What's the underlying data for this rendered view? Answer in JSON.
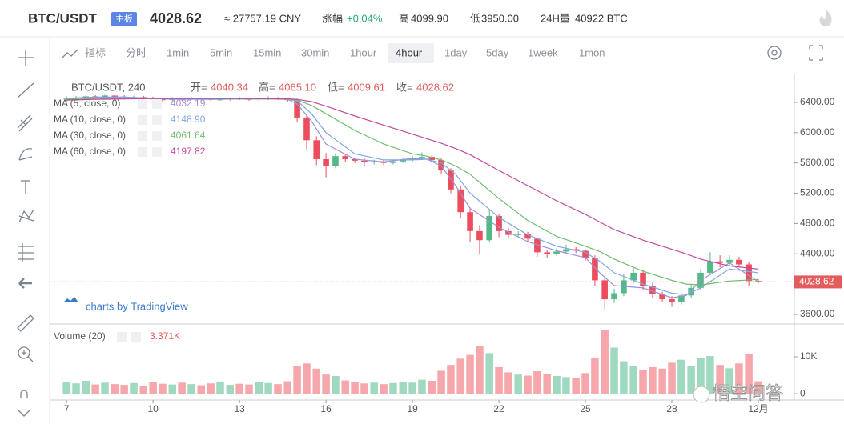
{
  "header": {
    "symbol": "BTC/USDT",
    "board": "主板",
    "cny": "≈ 27757.19 CNY",
    "change_label": "涨幅",
    "change": "+0.04%",
    "high_label": "高",
    "high": "4099.90",
    "low_label": "低",
    "low": "3950.00",
    "vol_label": "24H量",
    "vol": "40922 BTC"
  },
  "toolbar": {
    "indicator": "指标",
    "intervals": [
      "分时",
      "1min",
      "5min",
      "15min",
      "30min",
      "1hour",
      "4hour",
      "1day",
      "5day",
      "1week",
      "1mon"
    ],
    "selected": 6
  },
  "watermark": "悟空问答",
  "chart_data": {
    "type": "candlestick",
    "legend_title": "BTC/USDT, 240",
    "credit": "charts by TradingView",
    "ohlc_legend": [
      {
        "label": "开=",
        "value": "4040.34"
      },
      {
        "label": "高=",
        "value": "4065.10"
      },
      {
        "label": "低=",
        "value": "4009.61"
      },
      {
        "label": "收=",
        "value": "4028.62"
      }
    ],
    "up_color": "#53b987",
    "down_color": "#eb4d5c",
    "vol_up_color": "#9fd9c0",
    "vol_down_color": "#f5a7ab",
    "last_price_color": "#e25c5c",
    "grid": false,
    "xlim": [
      6.44,
      32.25
    ],
    "xticks": [
      7,
      10,
      13,
      16,
      19,
      22,
      25,
      28,
      {
        "value": 31,
        "label": "12月"
      }
    ],
    "ylim": [
      3473,
      6780
    ],
    "yticks": [
      {
        "value": 3600,
        "label": "3600.00"
      },
      {
        "value": 4000,
        "label": "4000.00"
      },
      {
        "value": 4400,
        "label": "4400.00"
      },
      {
        "value": 4800,
        "label": "4800.00"
      },
      {
        "value": 5200,
        "label": "5200.00"
      },
      {
        "value": 5600,
        "label": "5600.00"
      },
      {
        "value": 6000,
        "label": "6000.00"
      },
      {
        "value": 6400,
        "label": "6400.00"
      }
    ],
    "volume_ylim": [
      -1700,
      17800
    ],
    "volume_yticks": [
      0,
      {
        "value": 10000,
        "label": "10K"
      }
    ],
    "volume_legend": {
      "name": "Volume (20)",
      "label": "3.371K"
    },
    "x": [
      7,
      7.33,
      7.67,
      8,
      8.33,
      8.67,
      9,
      9.33,
      9.67,
      10,
      10.33,
      10.67,
      11,
      11.33,
      11.67,
      12,
      12.33,
      12.67,
      13,
      13.33,
      13.67,
      14,
      14.33,
      14.67,
      15,
      15.33,
      15.67,
      16,
      16.33,
      16.67,
      17,
      17.33,
      17.67,
      18,
      18.33,
      18.67,
      19,
      19.33,
      19.67,
      20,
      20.33,
      20.67,
      21,
      21.33,
      21.67,
      22,
      22.33,
      22.67,
      23,
      23.33,
      23.67,
      24,
      24.33,
      24.67,
      25,
      25.33,
      25.67,
      26,
      26.33,
      26.67,
      27,
      27.33,
      27.67,
      28,
      28.33,
      28.67,
      29,
      29.33,
      29.67,
      30,
      30.33,
      30.67,
      31
    ],
    "open": [
      6440,
      6450,
      6460,
      6480,
      6470,
      6490,
      6475,
      6460,
      6470,
      6455,
      6440,
      6430,
      6445,
      6440,
      6450,
      6445,
      6435,
      6440,
      6450,
      6445,
      6440,
      6450,
      6455,
      6445,
      6430,
      6200,
      5900,
      5650,
      5560,
      5690,
      5650,
      5630,
      5610,
      5620,
      5600,
      5620,
      5640,
      5660,
      5680,
      5640,
      5500,
      5250,
      4950,
      4700,
      4580,
      4900,
      4700,
      4650,
      4660,
      4600,
      4420,
      4400,
      4430,
      4460,
      4440,
      4350,
      4050,
      3800,
      3880,
      4050,
      4150,
      3980,
      3870,
      3800,
      3760,
      3850,
      3950,
      4150,
      4300,
      4280,
      4320,
      4260,
      4040.34
    ],
    "high": [
      6480,
      6485,
      6510,
      6495,
      6515,
      6500,
      6495,
      6490,
      6485,
      6475,
      6455,
      6470,
      6460,
      6470,
      6465,
      6455,
      6460,
      6465,
      6470,
      6455,
      6470,
      6480,
      6470,
      6465,
      6450,
      6230,
      5950,
      5730,
      5730,
      5720,
      5670,
      5660,
      5645,
      5640,
      5640,
      5665,
      5690,
      5740,
      5700,
      5660,
      5530,
      5290,
      5010,
      4780,
      4980,
      4930,
      4740,
      4700,
      4690,
      4620,
      4450,
      4470,
      4520,
      4490,
      4460,
      4380,
      4090,
      3940,
      4130,
      4210,
      4190,
      4020,
      3900,
      3840,
      3880,
      3990,
      4200,
      4420,
      4380,
      4380,
      4360,
      4290,
      4065.1
    ],
    "low": [
      6400,
      6430,
      6445,
      6450,
      6455,
      6450,
      6440,
      6445,
      6435,
      6425,
      6405,
      6415,
      6420,
      6430,
      6425,
      6420,
      6420,
      6420,
      6430,
      6420,
      6425,
      6430,
      6430,
      6410,
      6140,
      5780,
      5570,
      5410,
      5530,
      5610,
      5600,
      5560,
      5580,
      5570,
      5580,
      5600,
      5620,
      5640,
      5610,
      5460,
      5200,
      4870,
      4550,
      4400,
      4550,
      4620,
      4600,
      4620,
      4560,
      4360,
      4350,
      4370,
      4400,
      4410,
      4310,
      3970,
      3670,
      3750,
      3840,
      4010,
      3920,
      3810,
      3760,
      3700,
      3730,
      3810,
      3920,
      4120,
      4220,
      4240,
      4230,
      3980,
      4009.61
    ],
    "close": [
      6450,
      6460,
      6480,
      6470,
      6490,
      6475,
      6460,
      6470,
      6455,
      6440,
      6430,
      6445,
      6440,
      6450,
      6445,
      6435,
      6440,
      6450,
      6445,
      6440,
      6450,
      6455,
      6445,
      6430,
      6200,
      5900,
      5650,
      5560,
      5690,
      5650,
      5630,
      5610,
      5620,
      5600,
      5620,
      5640,
      5660,
      5680,
      5640,
      5500,
      5250,
      4950,
      4700,
      4580,
      4900,
      4700,
      4650,
      4660,
      4600,
      4420,
      4400,
      4430,
      4460,
      4440,
      4350,
      4050,
      3800,
      3880,
      4050,
      4150,
      3980,
      3870,
      3800,
      3760,
      3850,
      3950,
      4150,
      4300,
      4280,
      4320,
      4260,
      4040,
      4028.62
    ],
    "volume": [
      3200,
      2800,
      3500,
      2500,
      3000,
      2600,
      2400,
      2900,
      2200,
      3100,
      2700,
      2500,
      3000,
      2600,
      2300,
      2800,
      3300,
      2400,
      2700,
      2500,
      3100,
      2900,
      2600,
      3400,
      7500,
      8200,
      6800,
      5200,
      4800,
      3600,
      3100,
      2800,
      3000,
      2600,
      2900,
      3300,
      3000,
      3800,
      3500,
      6200,
      7800,
      9500,
      10500,
      12800,
      11000,
      7200,
      5800,
      5200,
      4900,
      6100,
      5400,
      4800,
      4500,
      4200,
      5600,
      9800,
      17200,
      12500,
      8800,
      7600,
      6400,
      7200,
      6800,
      8400,
      9200,
      7400,
      9600,
      10200,
      7800,
      6900,
      8200,
      10800,
      3371
    ],
    "ma": [
      {
        "name": "MA (5, close, 0)",
        "color": "#9d92d8",
        "value_label": "4032.19",
        "x": [
          7,
          8,
          9,
          10,
          11,
          12,
          13,
          14,
          14.67,
          15,
          15.5,
          16,
          17,
          18,
          19,
          19.5,
          20,
          20.5,
          21,
          22,
          23,
          24,
          25,
          25.5,
          26,
          27,
          28,
          28.5,
          29,
          30,
          31
        ],
        "values": [
          6455,
          6470,
          6470,
          6445,
          6440,
          6440,
          6445,
          6448,
          6440,
          6380,
          6150,
          5850,
          5650,
          5615,
          5660,
          5650,
          5560,
          5300,
          5000,
          4750,
          4560,
          4440,
          4350,
          4150,
          3980,
          3950,
          3820,
          3850,
          4050,
          4280,
          4032.19
        ]
      },
      {
        "name": "MA (10, close, 0)",
        "color": "#7fa8e3",
        "value_label": "4148.90",
        "x": [
          7,
          8,
          9,
          10,
          11,
          12,
          13,
          14,
          14.67,
          15,
          15.5,
          16,
          17,
          18,
          19,
          19.5,
          20,
          20.5,
          21,
          22,
          23,
          24,
          25,
          25.5,
          26,
          27,
          28,
          28.5,
          29,
          30,
          31
        ],
        "values": [
          6450,
          6465,
          6470,
          6455,
          6445,
          6440,
          6443,
          6446,
          6440,
          6420,
          6250,
          6000,
          5720,
          5640,
          5640,
          5650,
          5600,
          5450,
          5200,
          4880,
          4650,
          4500,
          4420,
          4300,
          4150,
          4000,
          3880,
          3860,
          3950,
          4200,
          4148.9
        ]
      },
      {
        "name": "MA (30, close, 0)",
        "color": "#6fbd6f",
        "value_label": "4061.64",
        "x": [
          7,
          8,
          9,
          10,
          11,
          12,
          13,
          14,
          14.67,
          15,
          15.5,
          16,
          17,
          18,
          19,
          19.5,
          20,
          20.5,
          21,
          22,
          23,
          24,
          25,
          25.5,
          26,
          27,
          28,
          28.5,
          29,
          30,
          31
        ],
        "values": [
          6440,
          6450,
          6455,
          6458,
          6455,
          6450,
          6448,
          6446,
          6445,
          6430,
          6360,
          6250,
          6030,
          5850,
          5720,
          5690,
          5640,
          5560,
          5450,
          5130,
          4840,
          4630,
          4500,
          4430,
          4330,
          4170,
          4050,
          4000,
          3990,
          4040,
          4061.64
        ]
      },
      {
        "name": "MA (60, close, 0)",
        "color": "#c6489f",
        "value_label": "4197.82",
        "x": [
          7,
          8,
          9,
          10,
          11,
          12,
          13,
          14,
          14.67,
          15,
          15.5,
          16,
          17,
          18,
          19,
          19.5,
          20,
          20.5,
          21,
          22,
          23,
          24,
          25,
          25.5,
          26,
          27,
          28,
          28.5,
          29,
          30,
          31
        ],
        "values": [
          6430,
          6440,
          6445,
          6450,
          6450,
          6452,
          6450,
          6448,
          6447,
          6440,
          6410,
          6350,
          6220,
          6100,
          5980,
          5920,
          5860,
          5790,
          5710,
          5500,
          5300,
          5100,
          4920,
          4820,
          4720,
          4580,
          4460,
          4400,
          4330,
          4240,
          4197.82
        ]
      }
    ]
  }
}
